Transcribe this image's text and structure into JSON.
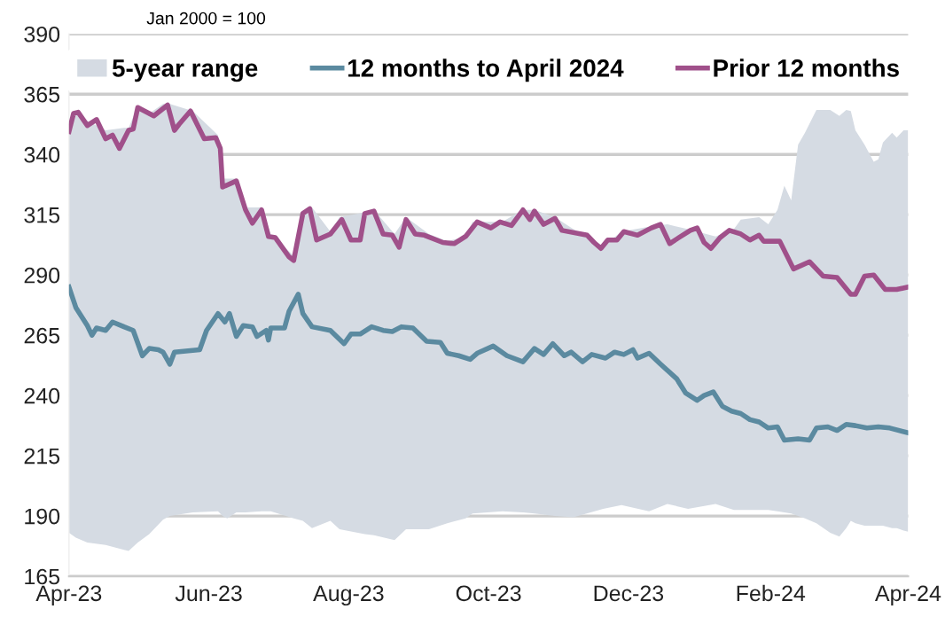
{
  "chart_data": {
    "type": "line",
    "annotations": [
      "Jan 2000 = 100"
    ],
    "xlim": [
      "2023-04-01",
      "2024-04-01"
    ],
    "xticks": [
      {
        "value": "2023-04-01",
        "label": "Apr-23"
      },
      {
        "value": "2023-06-01",
        "label": "Jun-23"
      },
      {
        "value": "2023-08-01",
        "label": "Aug-23"
      },
      {
        "value": "2023-10-01",
        "label": "Oct-23"
      },
      {
        "value": "2023-12-01",
        "label": "Dec-23"
      },
      {
        "value": "2024-02-01",
        "label": "Feb-24"
      },
      {
        "value": "2024-04-01",
        "label": "Apr-24"
      }
    ],
    "ylim": [
      165,
      390
    ],
    "yticks": [
      165,
      190,
      215,
      240,
      265,
      290,
      315,
      340,
      365,
      390
    ],
    "grid": "y",
    "legend": "top",
    "series": [
      {
        "name": "5-year range",
        "type": "area",
        "color": "#d5dbe3",
        "x": [
          "2023-04-01",
          "2023-04-04",
          "2023-04-09",
          "2023-04-17",
          "2023-04-25",
          "2023-04-27",
          "2023-05-01",
          "2023-05-06",
          "2023-05-12",
          "2023-05-15",
          "2023-05-25",
          "2023-06-05",
          "2023-06-07",
          "2023-06-09",
          "2023-06-13",
          "2023-06-17",
          "2023-06-24",
          "2023-06-28",
          "2023-07-08",
          "2023-07-12",
          "2023-07-16",
          "2023-07-24",
          "2023-07-28",
          "2023-08-08",
          "2023-08-12",
          "2023-08-21",
          "2023-08-26",
          "2023-09-05",
          "2023-09-13",
          "2023-09-21",
          "2023-09-24",
          "2023-10-07",
          "2023-10-16",
          "2023-10-21",
          "2023-10-30",
          "2023-11-07",
          "2023-11-20",
          "2023-11-28",
          "2023-12-10",
          "2023-12-18",
          "2023-12-27",
          "2024-01-08",
          "2024-01-16",
          "2024-01-19",
          "2024-01-27",
          "2024-01-31",
          "2024-02-04",
          "2024-02-07",
          "2024-02-10",
          "2024-02-13",
          "2024-02-16",
          "2024-02-21",
          "2024-02-27",
          "2024-03-02",
          "2024-03-05",
          "2024-03-07",
          "2024-03-09",
          "2024-03-13",
          "2024-03-17",
          "2024-03-19",
          "2024-03-21",
          "2024-03-25",
          "2024-03-27",
          "2024-03-30",
          "2024-04-01"
        ],
        "lower": [
          183,
          181,
          179,
          178,
          176,
          175.5,
          179,
          182.5,
          188.5,
          190,
          191.5,
          192,
          190,
          189,
          191.5,
          191.5,
          192,
          192,
          189,
          188,
          185,
          188,
          184.5,
          182.5,
          182,
          180,
          184.5,
          184.5,
          187,
          189,
          191,
          192,
          191.5,
          191,
          190,
          189.5,
          193,
          194.5,
          192,
          195,
          193,
          195,
          192.5,
          192.5,
          192.5,
          192.5,
          192,
          191.5,
          191,
          190,
          189,
          187,
          183,
          181.5,
          185,
          188,
          187,
          186,
          186,
          186,
          186,
          185,
          185,
          184,
          183.5
        ],
        "values": [
          null,
          null,
          null,
          null,
          null,
          null,
          null,
          null,
          null,
          null,
          null,
          null,
          null,
          null,
          null,
          null,
          null,
          null,
          null,
          null,
          null,
          null,
          null,
          null,
          null,
          null,
          null,
          null,
          null,
          null,
          null,
          null,
          null,
          null,
          null,
          null,
          null,
          null,
          null,
          null,
          null,
          null,
          null,
          null,
          null,
          null,
          null,
          null,
          null,
          null,
          null,
          null,
          null,
          null,
          null,
          null,
          null,
          null,
          null,
          null,
          null,
          null,
          null,
          null,
          null
        ],
        "upper": [
          350,
          357,
          354,
          350,
          351,
          351,
          360,
          357,
          361,
          361,
          358,
          348,
          330,
          330,
          330,
          318,
          318,
          307,
          298,
          316,
          318,
          308,
          314,
          316,
          317,
          307,
          314,
          307,
          304,
          306,
          312,
          312,
          317,
          317,
          314,
          309,
          302,
          308,
          310,
          311,
          309,
          306,
          309,
          313,
          314,
          311,
          317,
          327,
          321,
          344,
          349,
          358.5,
          358.5,
          356,
          358.5,
          358,
          350,
          344,
          337,
          338,
          345,
          349,
          347,
          350,
          350
        ]
      },
      {
        "name": "12 months to April 2024",
        "color": "#5b8aa0",
        "x": [
          "2023-04-01",
          "2023-04-04",
          "2023-04-09",
          "2023-04-11",
          "2023-04-13",
          "2023-04-17",
          "2023-04-20",
          "2023-04-25",
          "2023-04-29",
          "2023-05-03",
          "2023-05-06",
          "2023-05-10",
          "2023-05-12",
          "2023-05-15",
          "2023-05-17",
          "2023-05-28",
          "2023-05-31",
          "2023-06-05",
          "2023-06-08",
          "2023-06-10",
          "2023-06-13",
          "2023-06-16",
          "2023-06-20",
          "2023-06-22",
          "2023-06-26",
          "2023-06-27",
          "2023-06-28",
          "2023-07-04",
          "2023-07-06",
          "2023-07-10",
          "2023-07-12",
          "2023-07-16",
          "2023-07-24",
          "2023-07-30",
          "2023-08-02",
          "2023-08-06",
          "2023-08-11",
          "2023-08-16",
          "2023-08-20",
          "2023-08-24",
          "2023-08-29",
          "2023-09-04",
          "2023-09-10",
          "2023-09-13",
          "2023-09-18",
          "2023-09-23",
          "2023-09-26",
          "2023-10-03",
          "2023-10-09",
          "2023-10-16",
          "2023-10-21",
          "2023-10-25",
          "2023-10-29",
          "2023-11-03",
          "2023-11-06",
          "2023-11-11",
          "2023-11-15",
          "2023-11-21",
          "2023-11-25",
          "2023-11-29",
          "2023-12-03",
          "2023-12-05",
          "2023-12-10",
          "2023-12-15",
          "2023-12-22",
          "2023-12-26",
          "2023-12-31",
          "2024-01-03",
          "2024-01-07",
          "2024-01-11",
          "2024-01-15",
          "2024-01-19",
          "2024-01-23",
          "2024-01-27",
          "2024-01-31",
          "2024-02-04",
          "2024-02-07",
          "2024-02-13",
          "2024-02-18",
          "2024-02-21",
          "2024-02-26",
          "2024-03-01",
          "2024-03-05",
          "2024-03-09",
          "2024-03-14",
          "2024-03-19",
          "2024-03-24",
          "2024-04-01"
        ],
        "values": [
          285,
          276.5,
          269,
          265,
          268,
          267,
          270.5,
          268.5,
          267,
          256.5,
          259.5,
          259,
          258,
          253,
          258,
          259,
          267,
          274,
          270.5,
          274,
          264.5,
          269,
          268.5,
          264.5,
          267,
          263,
          268,
          268,
          275,
          282,
          274,
          268.5,
          267,
          261.5,
          265.5,
          265.5,
          268.5,
          267,
          266.5,
          268.5,
          268,
          262.5,
          262,
          257.5,
          256.5,
          255,
          257.5,
          260.5,
          256.5,
          254,
          259.5,
          257,
          261.5,
          256.5,
          258,
          254,
          257,
          255.5,
          258,
          257,
          259,
          255.5,
          257.5,
          253,
          247,
          241,
          238,
          240,
          241.5,
          235.5,
          233.5,
          232.5,
          230,
          229,
          226.5,
          227,
          221.5,
          222,
          221.5,
          226.5,
          227,
          225.5,
          228,
          227.5,
          226.5,
          227,
          226.5,
          224.5
        ]
      },
      {
        "name": "Prior 12 months",
        "color": "#a0508a",
        "x": [
          "2023-04-01",
          "2023-04-03",
          "2023-04-05",
          "2023-04-09",
          "2023-04-13",
          "2023-04-17",
          "2023-04-20",
          "2023-04-23",
          "2023-04-27",
          "2023-04-29",
          "2023-05-01",
          "2023-05-08",
          "2023-05-14",
          "2023-05-17",
          "2023-05-19",
          "2023-05-24",
          "2023-05-30",
          "2023-06-04",
          "2023-06-06",
          "2023-06-07",
          "2023-06-13",
          "2023-06-17",
          "2023-06-20",
          "2023-06-24",
          "2023-06-27",
          "2023-06-30",
          "2023-07-06",
          "2023-07-08",
          "2023-07-12",
          "2023-07-15",
          "2023-07-18",
          "2023-07-24",
          "2023-07-29",
          "2023-08-02",
          "2023-08-06",
          "2023-08-08",
          "2023-08-12",
          "2023-08-16",
          "2023-08-20",
          "2023-08-23",
          "2023-08-26",
          "2023-08-30",
          "2023-09-03",
          "2023-09-11",
          "2023-09-16",
          "2023-09-21",
          "2023-09-26",
          "2023-10-02",
          "2023-10-06",
          "2023-10-11",
          "2023-10-16",
          "2023-10-19",
          "2023-10-21",
          "2023-10-25",
          "2023-10-30",
          "2023-11-02",
          "2023-11-13",
          "2023-11-16",
          "2023-11-19",
          "2023-11-22",
          "2023-11-26",
          "2023-11-29",
          "2023-12-05",
          "2023-12-11",
          "2023-12-15",
          "2023-12-19",
          "2023-12-23",
          "2023-12-28",
          "2023-12-31",
          "2024-01-03",
          "2024-01-06",
          "2024-01-10",
          "2024-01-14",
          "2024-01-19",
          "2024-01-23",
          "2024-01-27",
          "2024-01-29",
          "2024-02-05",
          "2024-02-11",
          "2024-02-18",
          "2024-02-24",
          "2024-03-01",
          "2024-03-07",
          "2024-03-09",
          "2024-03-13",
          "2024-03-17",
          "2024-03-22",
          "2024-03-27",
          "2024-04-01"
        ],
        "values": [
          349.5,
          357,
          357.5,
          352,
          354.5,
          346.5,
          348,
          342.5,
          350,
          350.5,
          359.5,
          356,
          360.5,
          350,
          352.5,
          358,
          346.5,
          347,
          342.5,
          326.5,
          329,
          317,
          311.5,
          317,
          306,
          305.5,
          297.5,
          296,
          315.5,
          317.5,
          304.5,
          307,
          313,
          304.5,
          304.5,
          315.5,
          316.5,
          307,
          306.5,
          301.5,
          313,
          307,
          306.5,
          303.5,
          303,
          306,
          312,
          309.5,
          312,
          310.5,
          317,
          313,
          316.5,
          311,
          313.5,
          308.5,
          306.5,
          303.5,
          301,
          304.5,
          304.5,
          308,
          306.5,
          309.5,
          311,
          303,
          305.5,
          308.5,
          309.5,
          303.5,
          301,
          305.5,
          308.5,
          307,
          304.5,
          306.5,
          304,
          304,
          292.5,
          295.5,
          289.5,
          289,
          282,
          282,
          289.5,
          290,
          284,
          284,
          285
        ]
      }
    ]
  }
}
